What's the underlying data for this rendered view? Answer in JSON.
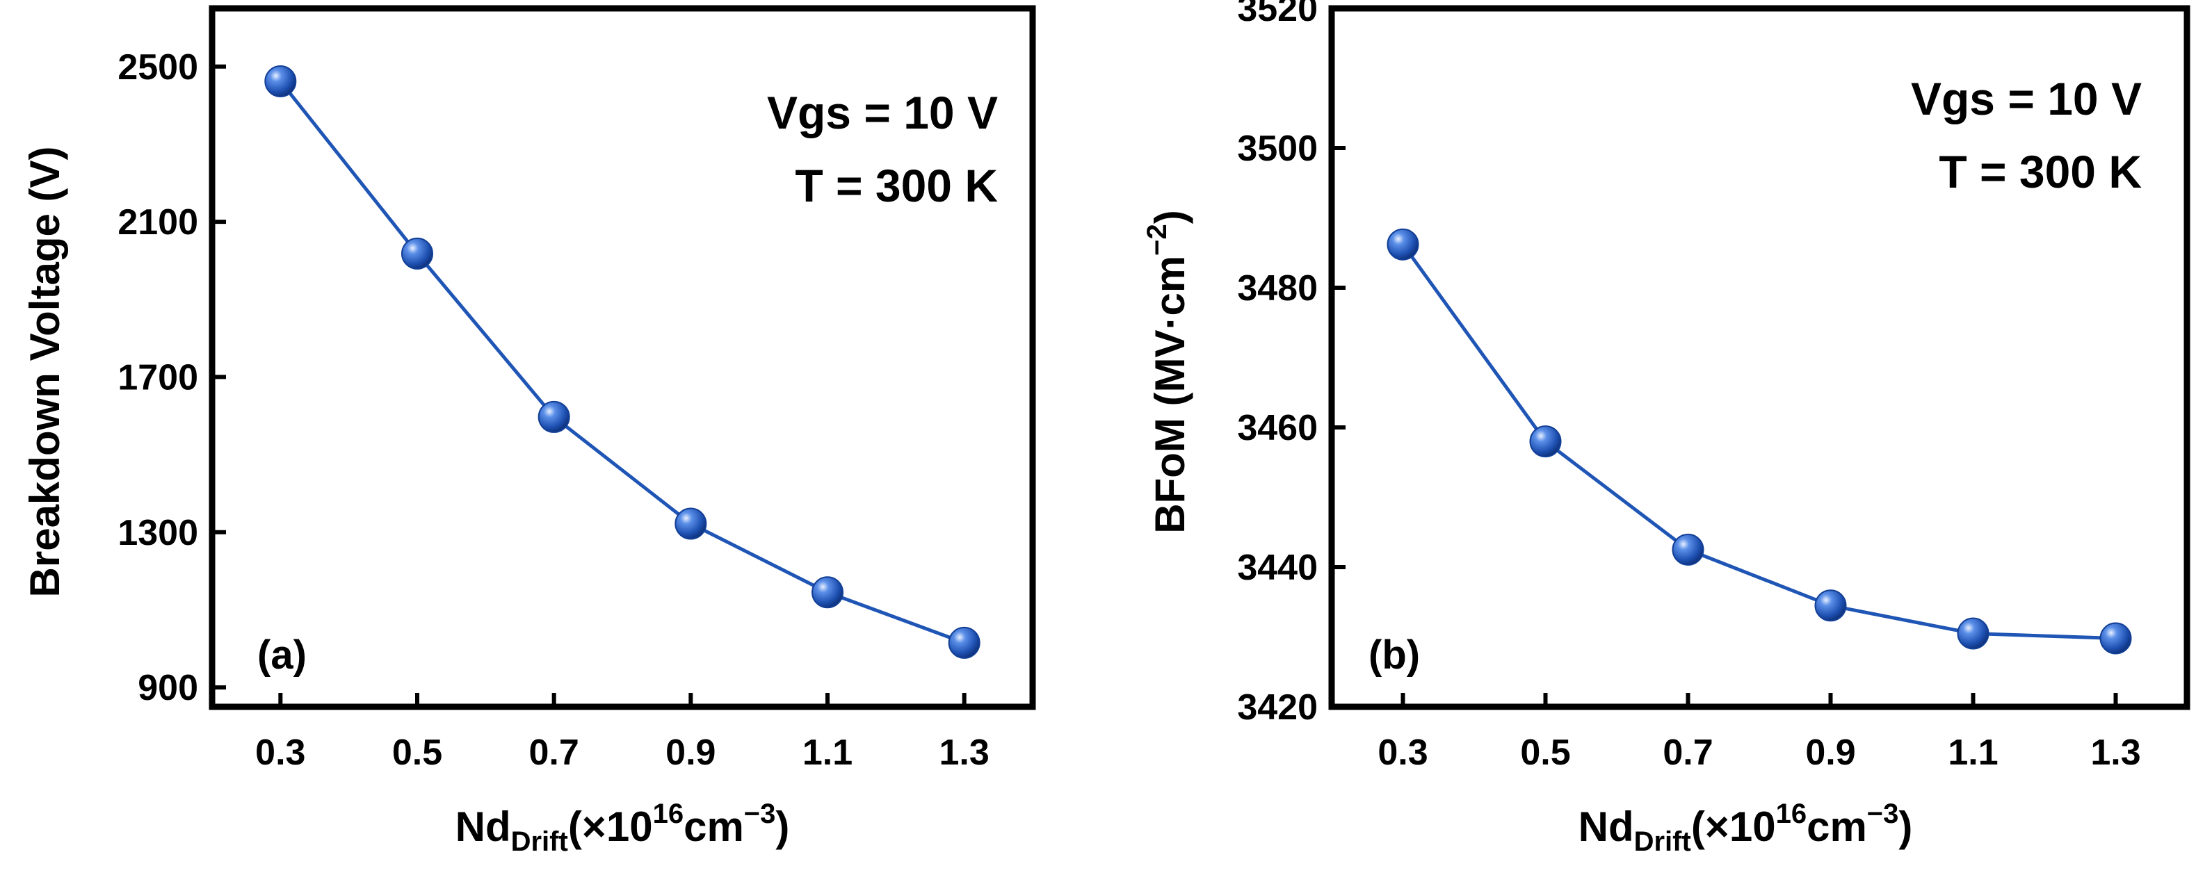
{
  "colors": {
    "line": "#1f55b5",
    "marker": "#1d4fb0",
    "marker_highlight": "#e8f0ff",
    "axis": "#000000"
  },
  "chart_data": [
    {
      "type": "line",
      "panel_label": "(a)",
      "annotation": [
        "Vgs = 10 V",
        "T = 300 K"
      ],
      "xlabel": {
        "main": "Nd",
        "sub": "Drift",
        "rest1": "(×10",
        "sup1": "16",
        "rest2": "cm",
        "sup2": "−3",
        "rest3": ")"
      },
      "ylabel": "Breakdown Voltage (V)",
      "x": [
        0.3,
        0.5,
        0.7,
        0.9,
        1.1,
        1.3
      ],
      "x_tick_labels": [
        "0.3",
        "0.5",
        "0.7",
        "0.9",
        "1.1",
        "1.3"
      ],
      "xlim": [
        0.2,
        1.4
      ],
      "y": [
        2462,
        2018,
        1597,
        1322,
        1145,
        1015
      ],
      "yticks": [
        900,
        1300,
        1700,
        2100,
        2500
      ],
      "y_tick_labels": [
        "900",
        "1300",
        "1700",
        "2100",
        "2500"
      ],
      "ylim": [
        850,
        2650
      ]
    },
    {
      "type": "line",
      "panel_label": "(b)",
      "annotation": [
        "Vgs = 10 V",
        "T = 300 K"
      ],
      "xlabel": {
        "main": "Nd",
        "sub": "Drift",
        "rest1": "(×10",
        "sup1": "16",
        "rest2": "cm",
        "sup2": "−3",
        "rest3": ")"
      },
      "ylabel": {
        "main": "BFoM (MV·cm",
        "sup": "−2",
        "rest": ")"
      },
      "x": [
        0.3,
        0.5,
        0.7,
        0.9,
        1.1,
        1.3
      ],
      "x_tick_labels": [
        "0.3",
        "0.5",
        "0.7",
        "0.9",
        "1.1",
        "1.3"
      ],
      "xlim": [
        0.2,
        1.4
      ],
      "y": [
        3486.2,
        3458.0,
        3442.5,
        3434.5,
        3430.5,
        3429.8
      ],
      "yticks": [
        3420,
        3440,
        3460,
        3480,
        3500,
        3520
      ],
      "y_tick_labels": [
        "3420",
        "3440",
        "3460",
        "3480",
        "3500",
        "3520"
      ],
      "ylim": [
        3420,
        3520
      ]
    }
  ]
}
